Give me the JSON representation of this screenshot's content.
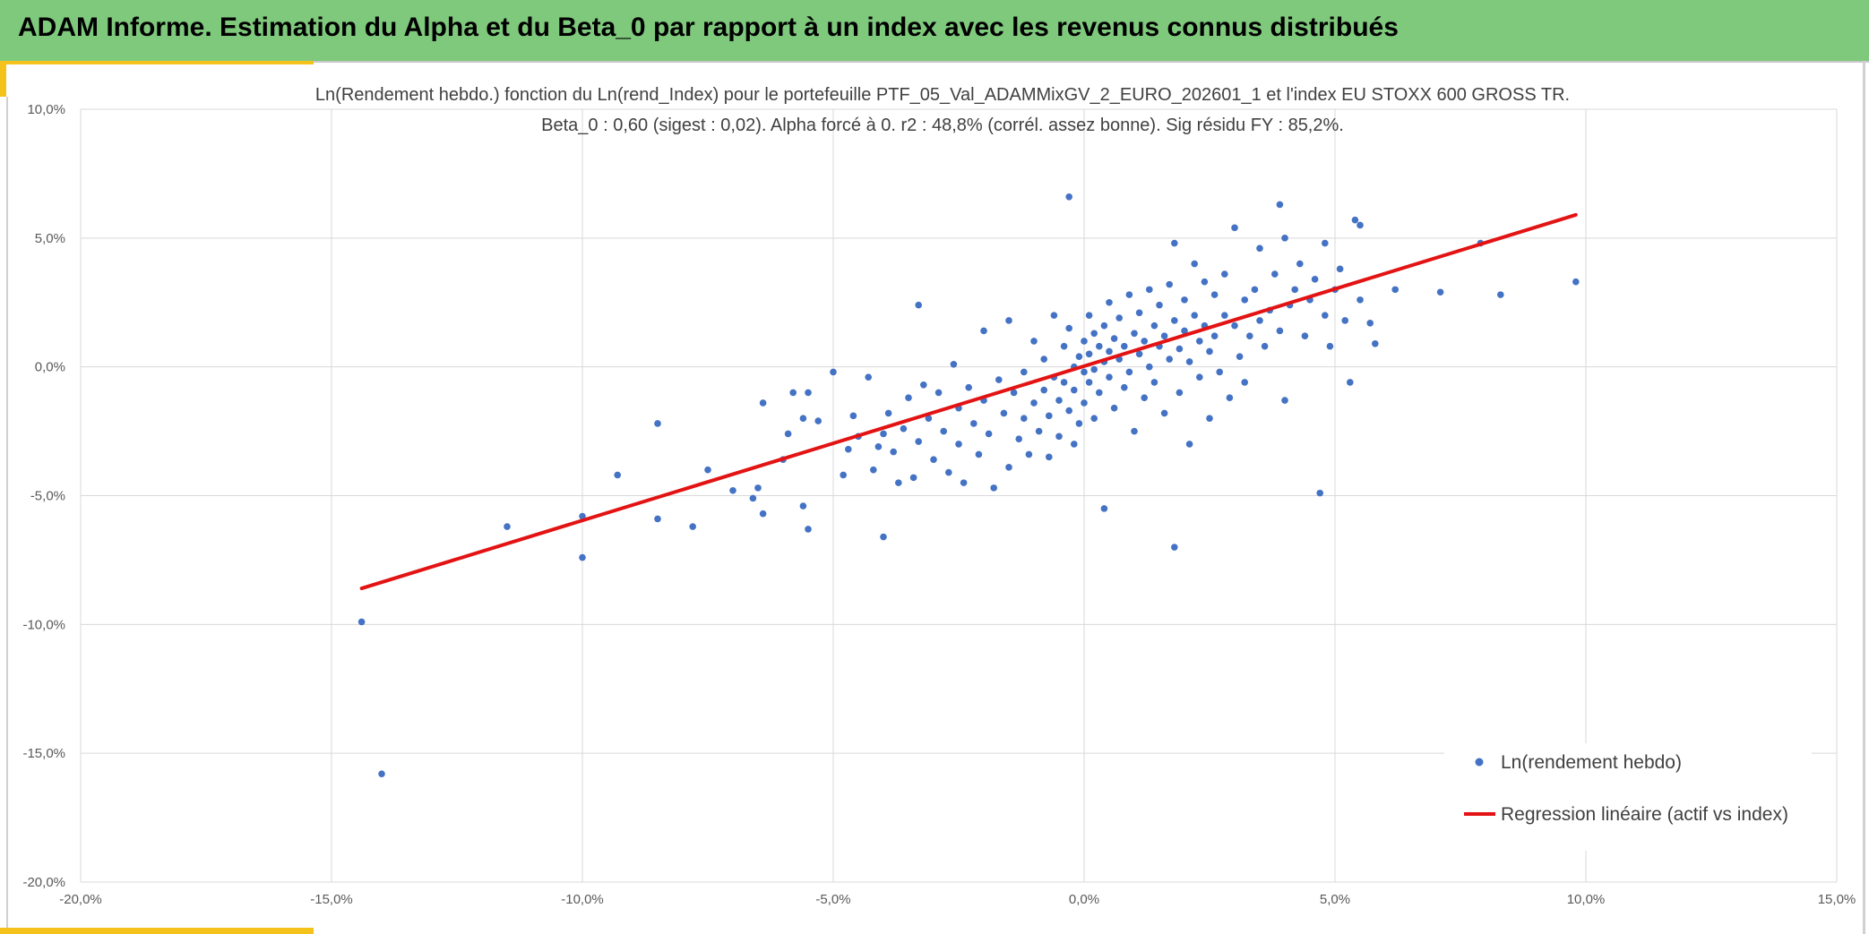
{
  "banner": {
    "title": "ADAM Informe. Estimation du Alpha et du Beta_0 par rapport à un index avec les revenus connus distribués"
  },
  "colors": {
    "banner": "#7fc97d",
    "accent": "#f5c21b",
    "points": "#4472c4",
    "regression": "#e31313"
  },
  "chart_data": {
    "type": "scatter",
    "title_lines": [
      "Ln(Rendement hebdo.) fonction du Ln(rend_Index) pour le portefeuille PTF_05_Val_ADAMMixGV_2_EURO_202601_1 et l'index EU STOXX 600 GROSS TR.",
      "Beta_0 : 0,60 (sigest : 0,02). Alpha forcé à 0. r2 : 48,8% (corrél. assez bonne). Sig résidu FY : 85,2%."
    ],
    "xlim": [
      -0.2,
      0.15
    ],
    "ylim": [
      -0.2,
      0.1
    ],
    "x_ticks": [
      -0.2,
      -0.15,
      -0.1,
      -0.05,
      0.0,
      0.05,
      0.1,
      0.15
    ],
    "x_tick_labels": [
      "-20,0%",
      "-15,0%",
      "-10,0%",
      "-5,0%",
      "0,0%",
      "5,0%",
      "10,0%",
      "15,0%"
    ],
    "y_ticks": [
      0.1,
      0.05,
      0.0,
      -0.05,
      -0.1,
      -0.15,
      -0.2
    ],
    "y_tick_labels": [
      "10,0%",
      "5,0%",
      "0,0%",
      "-5,0%",
      "-10,0%",
      "-15,0%",
      "-20,0%"
    ],
    "grid": true,
    "legend_position": "bottom-right",
    "legend": [
      "Ln(rendement hebdo)",
      "Regression linéaire (actif vs index)"
    ],
    "series": [
      {
        "name": "Ln(rendement hebdo)",
        "points": [
          [
            -0.144,
            -0.099
          ],
          [
            -0.14,
            -0.158
          ],
          [
            -0.115,
            -0.062
          ],
          [
            -0.1,
            -0.074
          ],
          [
            -0.1,
            -0.058
          ],
          [
            -0.093,
            -0.042
          ],
          [
            -0.085,
            -0.059
          ],
          [
            -0.085,
            -0.022
          ],
          [
            -0.078,
            -0.062
          ],
          [
            -0.075,
            -0.04
          ],
          [
            -0.07,
            -0.048
          ],
          [
            -0.066,
            -0.051
          ],
          [
            -0.065,
            -0.047
          ],
          [
            -0.064,
            -0.057
          ],
          [
            -0.064,
            -0.014
          ],
          [
            -0.06,
            -0.036
          ],
          [
            -0.059,
            -0.026
          ],
          [
            -0.058,
            -0.01
          ],
          [
            -0.056,
            -0.02
          ],
          [
            -0.056,
            -0.054
          ],
          [
            -0.055,
            -0.063
          ],
          [
            -0.055,
            -0.01
          ],
          [
            -0.053,
            -0.021
          ],
          [
            -0.05,
            -0.002
          ],
          [
            -0.048,
            -0.042
          ],
          [
            -0.047,
            -0.032
          ],
          [
            -0.046,
            -0.019
          ],
          [
            -0.045,
            -0.027
          ],
          [
            -0.043,
            -0.004
          ],
          [
            -0.042,
            -0.04
          ],
          [
            -0.041,
            -0.031
          ],
          [
            -0.04,
            -0.066
          ],
          [
            -0.04,
            -0.026
          ],
          [
            -0.039,
            -0.018
          ],
          [
            -0.038,
            -0.033
          ],
          [
            -0.037,
            -0.045
          ],
          [
            -0.036,
            -0.024
          ],
          [
            -0.035,
            -0.012
          ],
          [
            -0.034,
            -0.043
          ],
          [
            -0.033,
            -0.029
          ],
          [
            -0.033,
            0.024
          ],
          [
            -0.032,
            -0.007
          ],
          [
            -0.031,
            -0.02
          ],
          [
            -0.03,
            -0.036
          ],
          [
            -0.029,
            -0.01
          ],
          [
            -0.028,
            -0.025
          ],
          [
            -0.027,
            -0.041
          ],
          [
            -0.026,
            0.001
          ],
          [
            -0.025,
            -0.016
          ],
          [
            -0.025,
            -0.03
          ],
          [
            -0.024,
            -0.045
          ],
          [
            -0.023,
            -0.008
          ],
          [
            -0.022,
            -0.022
          ],
          [
            -0.021,
            -0.034
          ],
          [
            -0.02,
            0.014
          ],
          [
            -0.02,
            -0.013
          ],
          [
            -0.019,
            -0.026
          ],
          [
            -0.018,
            -0.047
          ],
          [
            -0.017,
            -0.005
          ],
          [
            -0.016,
            -0.018
          ],
          [
            -0.015,
            -0.039
          ],
          [
            -0.015,
            0.018
          ],
          [
            -0.014,
            -0.01
          ],
          [
            -0.013,
            -0.028
          ],
          [
            -0.012,
            -0.002
          ],
          [
            -0.012,
            -0.02
          ],
          [
            -0.011,
            -0.034
          ],
          [
            -0.01,
            0.01
          ],
          [
            -0.01,
            -0.014
          ],
          [
            -0.009,
            -0.025
          ],
          [
            -0.008,
            0.003
          ],
          [
            -0.008,
            -0.009
          ],
          [
            -0.007,
            -0.019
          ],
          [
            -0.007,
            -0.035
          ],
          [
            -0.006,
            0.02
          ],
          [
            -0.006,
            -0.004
          ],
          [
            -0.005,
            -0.013
          ],
          [
            -0.005,
            -0.027
          ],
          [
            -0.004,
            0.008
          ],
          [
            -0.004,
            -0.006
          ],
          [
            -0.003,
            0.066
          ],
          [
            -0.003,
            -0.017
          ],
          [
            -0.003,
            0.015
          ],
          [
            -0.002,
            0.0
          ],
          [
            -0.002,
            -0.009
          ],
          [
            -0.002,
            -0.03
          ],
          [
            -0.001,
            0.004
          ],
          [
            -0.001,
            -0.022
          ],
          [
            0.0,
            0.01
          ],
          [
            0.0,
            -0.002
          ],
          [
            0.0,
            -0.014
          ],
          [
            0.001,
            0.02
          ],
          [
            0.001,
            0.005
          ],
          [
            0.001,
            -0.006
          ],
          [
            0.002,
            0.013
          ],
          [
            0.002,
            -0.001
          ],
          [
            0.002,
            -0.02
          ],
          [
            0.003,
            0.008
          ],
          [
            0.003,
            -0.01
          ],
          [
            0.004,
            0.002
          ],
          [
            0.004,
            -0.055
          ],
          [
            0.004,
            0.016
          ],
          [
            0.005,
            0.006
          ],
          [
            0.005,
            -0.004
          ],
          [
            0.005,
            0.025
          ],
          [
            0.006,
            0.011
          ],
          [
            0.006,
            -0.016
          ],
          [
            0.007,
            0.003
          ],
          [
            0.007,
            0.019
          ],
          [
            0.008,
            -0.008
          ],
          [
            0.008,
            0.008
          ],
          [
            0.009,
            0.028
          ],
          [
            0.009,
            -0.002
          ],
          [
            0.01,
            0.013
          ],
          [
            0.01,
            -0.025
          ],
          [
            0.011,
            0.005
          ],
          [
            0.011,
            0.021
          ],
          [
            0.012,
            -0.012
          ],
          [
            0.012,
            0.01
          ],
          [
            0.013,
            0.03
          ],
          [
            0.013,
            0.0
          ],
          [
            0.014,
            0.016
          ],
          [
            0.014,
            -0.006
          ],
          [
            0.015,
            0.008
          ],
          [
            0.015,
            0.024
          ],
          [
            0.016,
            -0.018
          ],
          [
            0.016,
            0.012
          ],
          [
            0.017,
            0.003
          ],
          [
            0.017,
            0.032
          ],
          [
            0.018,
            -0.07
          ],
          [
            0.018,
            0.048
          ],
          [
            0.018,
            0.018
          ],
          [
            0.019,
            0.007
          ],
          [
            0.019,
            -0.01
          ],
          [
            0.02,
            0.026
          ],
          [
            0.02,
            0.014
          ],
          [
            0.021,
            -0.03
          ],
          [
            0.021,
            0.002
          ],
          [
            0.022,
            0.02
          ],
          [
            0.022,
            0.04
          ],
          [
            0.023,
            0.01
          ],
          [
            0.023,
            -0.004
          ],
          [
            0.024,
            0.033
          ],
          [
            0.024,
            0.016
          ],
          [
            0.025,
            -0.02
          ],
          [
            0.025,
            0.006
          ],
          [
            0.026,
            0.028
          ],
          [
            0.026,
            0.012
          ],
          [
            0.027,
            -0.002
          ],
          [
            0.028,
            0.036
          ],
          [
            0.028,
            0.02
          ],
          [
            0.029,
            -0.012
          ],
          [
            0.03,
            0.054
          ],
          [
            0.03,
            0.016
          ],
          [
            0.031,
            0.004
          ],
          [
            0.032,
            0.026
          ],
          [
            0.032,
            -0.006
          ],
          [
            0.033,
            0.012
          ],
          [
            0.034,
            0.03
          ],
          [
            0.035,
            0.046
          ],
          [
            0.035,
            0.018
          ],
          [
            0.036,
            0.008
          ],
          [
            0.037,
            0.022
          ],
          [
            0.038,
            0.036
          ],
          [
            0.039,
            0.063
          ],
          [
            0.039,
            0.014
          ],
          [
            0.04,
            0.05
          ],
          [
            0.04,
            -0.013
          ],
          [
            0.041,
            0.024
          ],
          [
            0.042,
            0.03
          ],
          [
            0.043,
            0.04
          ],
          [
            0.044,
            0.012
          ],
          [
            0.045,
            0.026
          ],
          [
            0.046,
            0.034
          ],
          [
            0.047,
            -0.049
          ],
          [
            0.048,
            0.048
          ],
          [
            0.048,
            0.02
          ],
          [
            0.049,
            0.008
          ],
          [
            0.05,
            0.03
          ],
          [
            0.051,
            0.038
          ],
          [
            0.052,
            0.018
          ],
          [
            0.053,
            -0.006
          ],
          [
            0.054,
            0.057
          ],
          [
            0.055,
            0.055
          ],
          [
            0.055,
            0.026
          ],
          [
            0.057,
            0.017
          ],
          [
            0.058,
            0.009
          ],
          [
            0.062,
            0.03
          ],
          [
            0.071,
            0.029
          ],
          [
            0.079,
            0.048
          ],
          [
            0.083,
            0.028
          ],
          [
            0.098,
            0.033
          ]
        ]
      },
      {
        "name": "Regression linéaire (actif vs index)",
        "type": "line",
        "points": [
          [
            -0.144,
            -0.086
          ],
          [
            0.098,
            0.059
          ]
        ]
      }
    ]
  }
}
